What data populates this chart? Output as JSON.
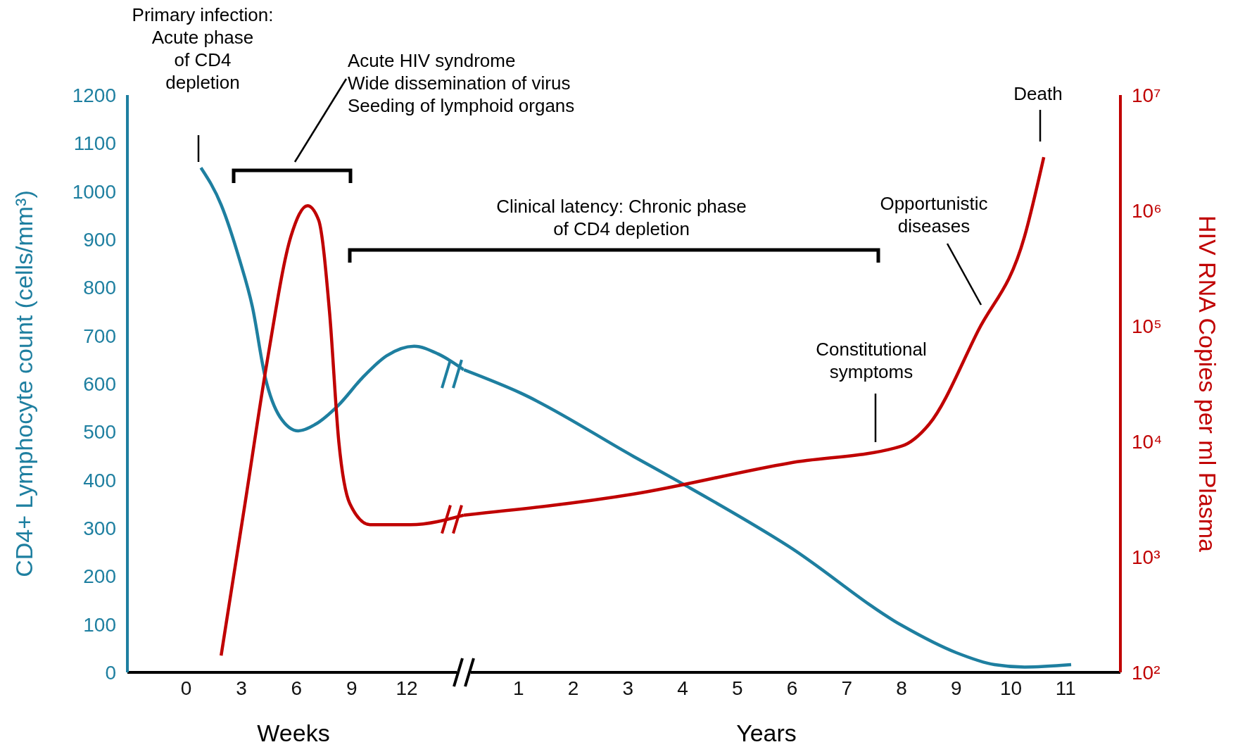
{
  "chart_data": [
    {
      "type": "line",
      "ylabel": "CD4+ Lymphocyte count (cells/mm³)",
      "xlabel": "Weeks",
      "xlim": [
        -3.2,
        15.1
      ],
      "xticks": [
        0,
        3,
        6,
        9,
        12
      ],
      "ylim": [
        0,
        1200
      ],
      "yticks": [
        0,
        100,
        200,
        300,
        400,
        500,
        600,
        700,
        800,
        900,
        1000,
        1100,
        1200
      ],
      "y2lim": [
        100,
        10000000
      ],
      "log": "y2",
      "tick_labels": "xy",
      "marker": "none",
      "line_style": "solid",
      "series": [
        {
          "color": "#1e7fa0",
          "x": [
            0.8,
            1.9,
            2.9,
            3.6,
            4.3,
            5.1,
            6.1,
            7.0,
            8.3,
            9.6,
            10.9,
            12.4,
            13.7,
            15.1
          ],
          "values": [
            1049,
            972,
            858,
            760,
            613,
            531,
            502,
            515,
            556,
            613,
            658,
            678,
            662,
            629
          ]
        },
        {
          "color": "#c00000",
          "axis": "y2",
          "x": [
            1.9,
            3.2,
            4.4,
            5.7,
            6.6,
            7.2,
            7.8,
            8.3,
            8.9,
            10.0,
            12.2,
            15.1
          ],
          "values": [
            140,
            2900,
            49000,
            600000,
            1100000,
            830000,
            130000,
            10000,
            2900,
            1900,
            1900,
            2300
          ]
        }
      ],
      "annotations": [
        "Primary infection:\nAcute phase\nof CD4\ndepletion",
        "Acute HIV syndrome\nWide dissemination of virus\nSeeding of lymphoid organs"
      ]
    },
    {
      "type": "line",
      "y2label": "HIV RNA Copies per ml Plasma",
      "xlabel": "Years",
      "xlim": [
        0,
        12
      ],
      "xticks": [
        1,
        2,
        3,
        4,
        5,
        6,
        7,
        8,
        9,
        10,
        11
      ],
      "ylim": [
        0,
        1200
      ],
      "y2lim": [
        100,
        10000000
      ],
      "y2ticks": [
        {
          "value": 100,
          "label": "10²"
        },
        {
          "value": 1000,
          "label": "10³"
        },
        {
          "value": 10000,
          "label": "10⁴"
        },
        {
          "value": 100000,
          "label": "10⁵"
        },
        {
          "value": 1000000,
          "label": "10⁶"
        },
        {
          "value": 10000000,
          "label": "10⁷"
        }
      ],
      "log": "y2",
      "tick_labels": "xy2",
      "marker": "none",
      "line_style": "solid",
      "series": [
        {
          "color": "#1e7fa0",
          "x": [
            0,
            1.05,
            3.1,
            4.0,
            5.95,
            8.0,
            9.0,
            9.7,
            10.25,
            11.1
          ],
          "values": [
            629,
            580,
            449,
            392,
            261,
            98,
            41,
            16,
            11,
            16
          ]
        },
        {
          "color": "#c00000",
          "axis": "y2",
          "x": [
            0,
            3.1,
            5.95,
            8.0,
            8.5,
            9.4,
            10.25,
            10.6
          ],
          "values": [
            2300,
            3500,
            6500,
            9100,
            14000,
            91000,
            600000,
            2900000
          ]
        }
      ],
      "annotations": [
        "Clinical latency: Chronic phase\nof CD4 depletion",
        "Constitutional\nsymptoms",
        "Opportunistic\ndiseases",
        "Death"
      ]
    }
  ]
}
